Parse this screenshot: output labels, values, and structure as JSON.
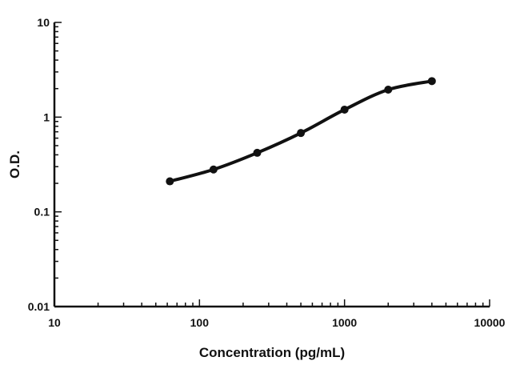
{
  "chart_data": {
    "type": "line",
    "title": "",
    "xlabel": "Concentration (pg/mL)",
    "ylabel": "O.D.",
    "xscale": "log",
    "yscale": "log",
    "xlim": [
      10,
      10000
    ],
    "ylim": [
      0.01,
      10
    ],
    "x_ticks": [
      "10",
      "100",
      "1000",
      "10000"
    ],
    "y_ticks": [
      "0.01",
      "0.1",
      "1",
      "10"
    ],
    "grid": false,
    "legend": "none",
    "line_color": "#111111",
    "series": [
      {
        "x": [
          62.5,
          125,
          250,
          500,
          1000,
          2000,
          4000
        ],
        "y": [
          0.21,
          0.28,
          0.42,
          0.68,
          1.2,
          1.95,
          2.4
        ]
      }
    ]
  }
}
